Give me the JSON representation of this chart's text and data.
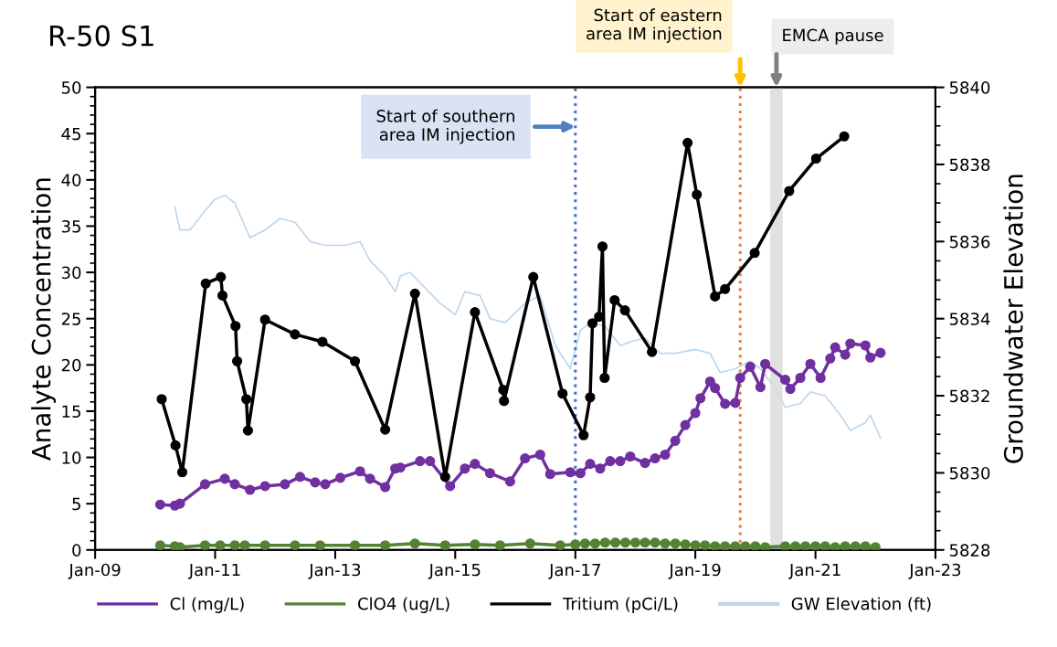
{
  "chart_data": {
    "type": "line",
    "title": "R-50 S1",
    "ylabel": "Analyte Concentration",
    "y2label": "Groundwater Elevation",
    "xlim": [
      "2009-01-01",
      "2023-01-01"
    ],
    "xticks": [
      {
        "value": "2009-01-01",
        "label": "Jan-09"
      },
      {
        "value": "2011-01-01",
        "label": "Jan-11"
      },
      {
        "value": "2013-01-01",
        "label": "Jan-13"
      },
      {
        "value": "2015-01-01",
        "label": "Jan-15"
      },
      {
        "value": "2017-01-01",
        "label": "Jan-17"
      },
      {
        "value": "2019-01-01",
        "label": "Jan-19"
      },
      {
        "value": "2021-01-01",
        "label": "Jan-21"
      },
      {
        "value": "2023-01-01",
        "label": "Jan-23"
      }
    ],
    "ylim": [
      0,
      50
    ],
    "yticks": [
      0,
      5,
      10,
      15,
      20,
      25,
      30,
      35,
      40,
      45,
      50
    ],
    "y2lim": [
      5828,
      5840
    ],
    "y2ticks": [
      5828,
      5830,
      5832,
      5834,
      5836,
      5838,
      5840
    ],
    "grid": false,
    "legend": "bottom",
    "line_style": "solid",
    "series": [
      {
        "name": "Cl (mg/L)",
        "color": "#7030a0",
        "marker": "circle",
        "x": [
          "2010-02",
          "2010-05",
          "2010-06",
          "2010-11",
          "2011-03",
          "2011-05",
          "2011-08",
          "2011-11",
          "2012-03",
          "2012-06",
          "2012-09",
          "2012-11",
          "2013-02",
          "2013-06",
          "2013-08",
          "2013-11",
          "2014-01",
          "2014-02",
          "2014-06",
          "2014-08",
          "2014-12",
          "2015-03",
          "2015-05",
          "2015-08",
          "2015-12",
          "2016-03",
          "2016-06",
          "2016-08",
          "2016-12",
          "2017-02",
          "2017-04",
          "2017-06",
          "2017-08",
          "2017-10",
          "2017-12",
          "2018-03",
          "2018-05",
          "2018-07",
          "2018-09",
          "2018-11",
          "2019-01",
          "2019-02",
          "2019-04",
          "2019-05",
          "2019-07",
          "2019-09",
          "2019-10",
          "2019-12",
          "2020-02",
          "2020-03",
          "2020-07",
          "2020-08",
          "2020-10",
          "2020-12",
          "2021-02",
          "2021-04",
          "2021-05",
          "2021-07",
          "2021-08",
          "2021-11",
          "2021-12",
          "2022-02"
        ],
        "values": [
          4.9,
          4.8,
          5.0,
          7.1,
          7.7,
          7.1,
          6.5,
          6.9,
          7.1,
          7.9,
          7.3,
          7.1,
          7.8,
          8.5,
          7.7,
          6.8,
          8.8,
          8.9,
          9.6,
          9.6,
          6.9,
          8.8,
          9.3,
          8.3,
          7.4,
          9.9,
          10.3,
          8.2,
          8.4,
          8.3,
          9.3,
          8.8,
          9.6,
          9.6,
          10.1,
          9.4,
          9.9,
          10.3,
          11.8,
          13.5,
          14.8,
          16.4,
          18.2,
          17.5,
          15.8,
          15.9,
          18.6,
          19.8,
          17.6,
          20.1,
          18.4,
          17.4,
          18.6,
          20.1,
          18.6,
          20.7,
          21.9,
          21.1,
          22.3,
          22.1,
          20.8,
          21.3
        ]
      },
      {
        "name": "ClO4 (ug/L)",
        "color": "#548235",
        "marker": "circle",
        "x": [
          "2010-02",
          "2010-05",
          "2010-06",
          "2010-11",
          "2011-02",
          "2011-05",
          "2011-07",
          "2011-11",
          "2012-05",
          "2012-10",
          "2013-05",
          "2013-11",
          "2014-05",
          "2014-11",
          "2015-05",
          "2015-10",
          "2016-04",
          "2016-10",
          "2017-01",
          "2017-03",
          "2017-05",
          "2017-07",
          "2017-09",
          "2017-11",
          "2018-01",
          "2018-03",
          "2018-05",
          "2018-07",
          "2018-09",
          "2018-11",
          "2019-01",
          "2019-03",
          "2019-05",
          "2019-07",
          "2019-09",
          "2019-11",
          "2020-01",
          "2020-03",
          "2020-07",
          "2020-09",
          "2020-11",
          "2021-01",
          "2021-03",
          "2021-05",
          "2021-07",
          "2021-09",
          "2021-11",
          "2022-01"
        ],
        "values": [
          0.5,
          0.4,
          0.3,
          0.5,
          0.5,
          0.5,
          0.5,
          0.5,
          0.5,
          0.5,
          0.5,
          0.5,
          0.7,
          0.5,
          0.6,
          0.5,
          0.7,
          0.5,
          0.6,
          0.7,
          0.7,
          0.8,
          0.8,
          0.8,
          0.8,
          0.8,
          0.8,
          0.7,
          0.7,
          0.6,
          0.5,
          0.5,
          0.4,
          0.4,
          0.4,
          0.4,
          0.4,
          0.3,
          0.4,
          0.4,
          0.4,
          0.4,
          0.4,
          0.3,
          0.4,
          0.4,
          0.4,
          0.3
        ]
      },
      {
        "name": "Tritium (pCi/L)",
        "color": "#000000",
        "marker": "circle",
        "x": [
          "2010-02-10",
          "2010-05-05",
          "2010-06-15",
          "2010-11-05",
          "2011-02-05",
          "2011-02-15",
          "2011-05-05",
          "2011-05-15",
          "2011-07-10",
          "2011-07-20",
          "2011-11-01",
          "2012-05-01",
          "2012-10-15",
          "2013-05-01",
          "2013-11-01",
          "2014-05-01",
          "2014-11-01",
          "2015-05-01",
          "2015-10-20",
          "2015-10-25",
          "2016-04-20",
          "2016-10-15",
          "2017-02-20",
          "2017-04-01",
          "2017-04-15",
          "2017-05-25",
          "2017-06-15",
          "2017-06-28",
          "2017-08-28",
          "2017-10-30",
          "2018-04-12",
          "2018-11-15",
          "2019-01-10",
          "2019-05-01",
          "2019-07-01",
          "2019-12-28",
          "2020-07-25",
          "2021-01-05",
          "2021-06-25"
        ],
        "values": [
          16.3,
          11.3,
          8.4,
          28.8,
          29.5,
          27.5,
          24.2,
          20.4,
          16.3,
          12.9,
          24.9,
          23.3,
          22.5,
          20.4,
          13.0,
          27.7,
          7.9,
          25.7,
          17.3,
          16.1,
          29.5,
          16.9,
          12.4,
          16.5,
          24.5,
          25.2,
          32.8,
          18.6,
          27.0,
          25.9,
          21.4,
          44.0,
          38.4,
          27.4,
          28.2,
          32.1,
          38.8,
          42.3,
          44.7
        ]
      },
      {
        "name": "GW Elevation (ft)",
        "color": "#bdd7ee",
        "marker": "none",
        "axis": "y2",
        "x": [
          "2010-05",
          "2010-06",
          "2010-08",
          "2010-11",
          "2011-01",
          "2011-03",
          "2011-05",
          "2011-08",
          "2011-11",
          "2012-02",
          "2012-05",
          "2012-08",
          "2012-11",
          "2013-03",
          "2013-06",
          "2013-08",
          "2013-11",
          "2014-01",
          "2014-02",
          "2014-04",
          "2014-07",
          "2014-10",
          "2015-01",
          "2015-03",
          "2015-06",
          "2015-08",
          "2015-11",
          "2016-03",
          "2016-06",
          "2016-09",
          "2016-12",
          "2017-02",
          "2017-04",
          "2017-07",
          "2017-10",
          "2017-12",
          "2018-03",
          "2018-06",
          "2018-09",
          "2019-01",
          "2019-04",
          "2019-06",
          "2019-09",
          "2019-12",
          "2020-02",
          "2020-05",
          "2020-07",
          "2020-10",
          "2020-12",
          "2021-03",
          "2021-06",
          "2021-08",
          "2021-11",
          "2021-12",
          "2022-02"
        ],
        "values": [
          5836.9,
          5836.3,
          5836.3,
          5836.8,
          5837.1,
          5837.2,
          5837.0,
          5836.1,
          5836.3,
          5836.6,
          5836.5,
          5836.0,
          5835.9,
          5835.9,
          5836.0,
          5835.5,
          5835.1,
          5834.7,
          5835.1,
          5835.2,
          5834.8,
          5834.4,
          5834.1,
          5834.7,
          5834.6,
          5834.0,
          5833.9,
          5834.4,
          5834.6,
          5833.3,
          5832.7,
          5833.7,
          5833.9,
          5833.8,
          5833.3,
          5833.4,
          5833.5,
          5833.1,
          5833.1,
          5833.2,
          5833.1,
          5832.6,
          5832.7,
          5832.9,
          5832.7,
          5832.2,
          5831.7,
          5831.8,
          5832.1,
          5832.0,
          5831.5,
          5831.1,
          5831.3,
          5831.5,
          5830.9
        ]
      }
    ],
    "ref_lines": [
      {
        "axis": "x",
        "value": "2017-01-01",
        "label": "Start of southern\narea IM injection",
        "color": "#4472c4",
        "line_style": "dotted"
      },
      {
        "axis": "x",
        "value": "2019-10-01",
        "label": "Start of eastern\narea IM injection",
        "color": "#ed7d31",
        "line_style": "dotted"
      }
    ],
    "bands": [
      {
        "axis": "x",
        "from": "2020-04-01",
        "to": "2020-06-15",
        "label": "EMCA pause",
        "color": "#d9d9d9"
      }
    ]
  }
}
